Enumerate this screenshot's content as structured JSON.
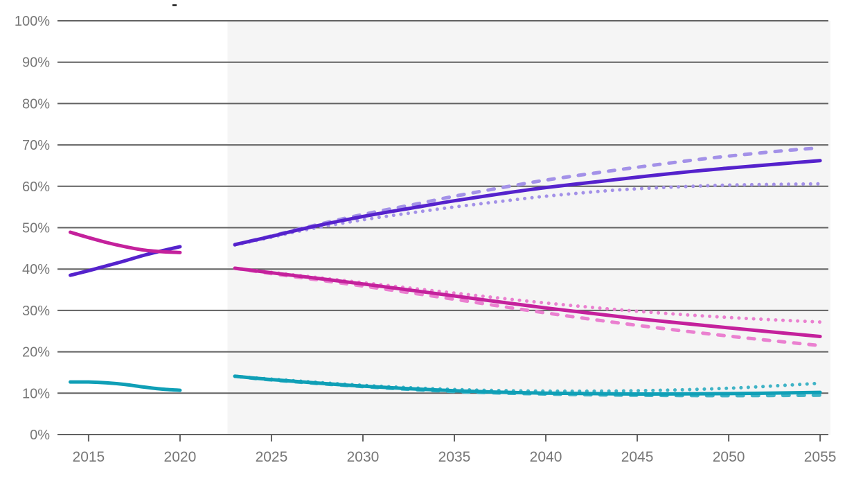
{
  "header": {
    "top_mark_glyph": "-"
  },
  "colors": {
    "background": "#ffffff",
    "projection_shade": "#f5f5f5",
    "gridline": "#616161",
    "axis_label": "#777777",
    "purple_solid": "#5522cc",
    "purple_light": "#a391e8",
    "magenta_solid": "#c4219c",
    "magenta_light": "#ea80d0",
    "teal_solid": "#0f9fb6",
    "teal_light": "#3fb3c6"
  },
  "chart_data": {
    "type": "line",
    "title": "",
    "legend": "none",
    "grid": true,
    "x_axis": {
      "min": 2013.3,
      "max": 2055.45,
      "ticks": [
        2015,
        2020,
        2025,
        2030,
        2035,
        2040,
        2045,
        2050,
        2055
      ],
      "labels": [
        "2015",
        "2020",
        "2025",
        "2030",
        "2035",
        "2040",
        "2045",
        "2050",
        "2055"
      ]
    },
    "y_axis": {
      "min": 0,
      "max": 100,
      "unit": "%",
      "ticks": [
        0,
        10,
        20,
        30,
        40,
        50,
        60,
        70,
        80,
        90,
        100
      ],
      "labels": [
        "0%",
        "10%",
        "20%",
        "30%",
        "40%",
        "50%",
        "60%",
        "70%",
        "80%",
        "90%",
        "100%"
      ]
    },
    "projection_region": {
      "from": 2022.6,
      "to": 2055.45,
      "fill": "#f5f5f5"
    },
    "series": [
      {
        "name": "purple-history",
        "color": "#5522cc",
        "style": "solid",
        "period": "history",
        "points": [
          [
            2014,
            38.5
          ],
          [
            2015,
            39.6
          ],
          [
            2016,
            40.8
          ],
          [
            2017,
            42.0
          ],
          [
            2018,
            43.3
          ],
          [
            2019,
            44.4
          ],
          [
            2020,
            45.4
          ]
        ]
      },
      {
        "name": "magenta-history",
        "color": "#c4219c",
        "style": "solid",
        "period": "history",
        "points": [
          [
            2014,
            48.9
          ],
          [
            2015,
            47.6
          ],
          [
            2016,
            46.4
          ],
          [
            2017,
            45.4
          ],
          [
            2018,
            44.6
          ],
          [
            2019,
            44.2
          ],
          [
            2020,
            44.0
          ]
        ]
      },
      {
        "name": "teal-history",
        "color": "#0f9fb6",
        "style": "solid",
        "period": "history",
        "points": [
          [
            2014,
            12.7
          ],
          [
            2015,
            12.7
          ],
          [
            2016,
            12.5
          ],
          [
            2017,
            12.1
          ],
          [
            2018,
            11.5
          ],
          [
            2019,
            11.0
          ],
          [
            2020,
            10.7
          ]
        ]
      },
      {
        "name": "purple-projection-dashed",
        "color": "#a391e8",
        "style": "dashed",
        "period": "projection",
        "points": [
          [
            2023,
            45.9
          ],
          [
            2025,
            48.0
          ],
          [
            2027,
            50.2
          ],
          [
            2030,
            53.2
          ],
          [
            2033,
            55.8
          ],
          [
            2035,
            57.6
          ],
          [
            2038,
            60.0
          ],
          [
            2040,
            61.5
          ],
          [
            2043,
            63.4
          ],
          [
            2045,
            64.6
          ],
          [
            2048,
            66.3
          ],
          [
            2050,
            67.3
          ],
          [
            2053,
            68.6
          ],
          [
            2055,
            69.3
          ]
        ]
      },
      {
        "name": "purple-projection-dotted",
        "color": "#a391e8",
        "style": "dotted",
        "period": "projection",
        "points": [
          [
            2023,
            45.8
          ],
          [
            2025,
            47.7
          ],
          [
            2027,
            49.6
          ],
          [
            2030,
            51.9
          ],
          [
            2033,
            53.8
          ],
          [
            2035,
            55.0
          ],
          [
            2038,
            56.6
          ],
          [
            2040,
            57.6
          ],
          [
            2043,
            58.8
          ],
          [
            2045,
            59.4
          ],
          [
            2048,
            60.0
          ],
          [
            2050,
            60.3
          ],
          [
            2053,
            60.5
          ],
          [
            2055,
            60.6
          ]
        ]
      },
      {
        "name": "magenta-projection-dashed",
        "color": "#ea80d0",
        "style": "dashed",
        "period": "projection",
        "points": [
          [
            2023,
            40.2
          ],
          [
            2025,
            38.9
          ],
          [
            2030,
            35.9
          ],
          [
            2035,
            32.7
          ],
          [
            2040,
            29.4
          ],
          [
            2045,
            26.4
          ],
          [
            2050,
            23.8
          ],
          [
            2055,
            21.5
          ]
        ]
      },
      {
        "name": "magenta-projection-dotted",
        "color": "#ea80d0",
        "style": "dotted",
        "period": "projection",
        "points": [
          [
            2023,
            40.2
          ],
          [
            2025,
            39.2
          ],
          [
            2030,
            36.7
          ],
          [
            2035,
            34.2
          ],
          [
            2040,
            31.8
          ],
          [
            2045,
            29.8
          ],
          [
            2050,
            28.3
          ],
          [
            2055,
            27.2
          ]
        ]
      },
      {
        "name": "teal-projection-dashed",
        "color": "#3fb3c6",
        "style": "dashed",
        "period": "projection",
        "points": [
          [
            2023,
            14.1
          ],
          [
            2025,
            13.2
          ],
          [
            2030,
            11.6
          ],
          [
            2035,
            10.4
          ],
          [
            2040,
            9.8
          ],
          [
            2045,
            9.5
          ],
          [
            2050,
            9.4
          ],
          [
            2055,
            9.5
          ]
        ]
      },
      {
        "name": "teal-projection-dotted",
        "color": "#3fb3c6",
        "style": "dotted",
        "period": "projection",
        "points": [
          [
            2023,
            14.1
          ],
          [
            2025,
            13.4
          ],
          [
            2030,
            11.9
          ],
          [
            2035,
            10.9
          ],
          [
            2040,
            10.5
          ],
          [
            2045,
            10.6
          ],
          [
            2050,
            11.2
          ],
          [
            2055,
            12.4
          ]
        ]
      },
      {
        "name": "purple-projection-solid",
        "color": "#5522cc",
        "style": "solid",
        "period": "projection",
        "points": [
          [
            2023,
            45.9
          ],
          [
            2025,
            47.9
          ],
          [
            2027,
            50.0
          ],
          [
            2030,
            52.7
          ],
          [
            2033,
            55.0
          ],
          [
            2035,
            56.5
          ],
          [
            2038,
            58.5
          ],
          [
            2040,
            59.7
          ],
          [
            2043,
            61.2
          ],
          [
            2045,
            62.2
          ],
          [
            2048,
            63.6
          ],
          [
            2050,
            64.4
          ],
          [
            2053,
            65.5
          ],
          [
            2055,
            66.2
          ]
        ]
      },
      {
        "name": "magenta-projection-solid",
        "color": "#c4219c",
        "style": "solid",
        "period": "projection",
        "points": [
          [
            2023,
            40.2
          ],
          [
            2025,
            39.1
          ],
          [
            2030,
            36.4
          ],
          [
            2035,
            33.5
          ],
          [
            2040,
            30.6
          ],
          [
            2045,
            28.0
          ],
          [
            2050,
            25.8
          ],
          [
            2055,
            23.7
          ]
        ]
      },
      {
        "name": "teal-projection-solid",
        "color": "#0f9fb6",
        "style": "solid",
        "period": "projection",
        "points": [
          [
            2023,
            14.1
          ],
          [
            2025,
            13.3
          ],
          [
            2030,
            11.7
          ],
          [
            2035,
            10.6
          ],
          [
            2040,
            10.0
          ],
          [
            2045,
            9.8
          ],
          [
            2050,
            9.9
          ],
          [
            2055,
            10.2
          ]
        ]
      }
    ]
  }
}
